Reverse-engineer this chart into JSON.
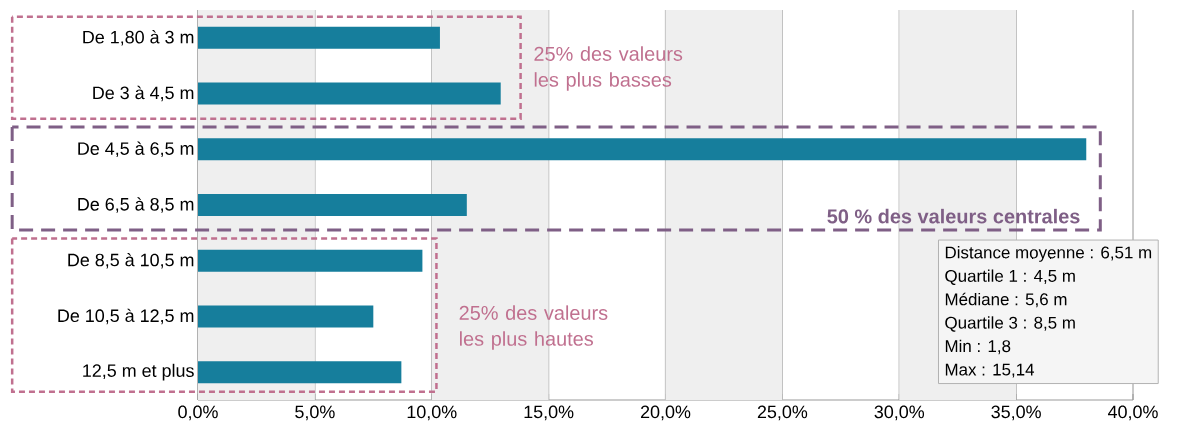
{
  "chart_data": {
    "type": "bar",
    "orientation": "horizontal",
    "categories": [
      "De 1,80 à 3 m",
      "De 3 à 4,5 m",
      "De 4,5 à 6,5 m",
      "De 6,5 à 8,5 m",
      "De 8,5 à 10,5 m",
      "De 10,5 à 12,5 m",
      "12,5 m et plus"
    ],
    "values": [
      10.35,
      12.95,
      38.0,
      11.5,
      9.6,
      7.5,
      8.7
    ],
    "color": "#167e9c",
    "xlim": [
      0,
      40
    ],
    "xticks": [
      {
        "value": 0,
        "label": "0,0%"
      },
      {
        "value": 5,
        "label": "5,0%"
      },
      {
        "value": 10,
        "label": "10,0%"
      },
      {
        "value": 15,
        "label": "15,0%"
      },
      {
        "value": 20,
        "label": "20,0%"
      },
      {
        "value": 25,
        "label": "25,0%"
      },
      {
        "value": 30,
        "label": "30,0%"
      },
      {
        "value": 35,
        "label": "35,0%"
      },
      {
        "value": 40,
        "label": "40,0%"
      }
    ],
    "grid": "x",
    "bands": [
      {
        "axis": "x",
        "from": 0,
        "to": 5,
        "color": "#efefef"
      },
      {
        "axis": "x",
        "from": 10,
        "to": 15,
        "color": "#efefef"
      },
      {
        "axis": "x",
        "from": 20,
        "to": 25,
        "color": "#efefef"
      },
      {
        "axis": "x",
        "from": 30,
        "to": 35,
        "color": "#efefef"
      }
    ],
    "annotations": [
      "25% des valeurs les plus basses",
      "50 % des valeurs centrales",
      "25% des valeurs les plus hautes",
      "Distance moyenne : 6,51 m",
      "Quartile 1 : 4,5 m",
      "Médiane : 5,6 m",
      "Quartile 3 : 8,5 m",
      "Min : 1,8",
      "Max : 15,14"
    ]
  }
}
